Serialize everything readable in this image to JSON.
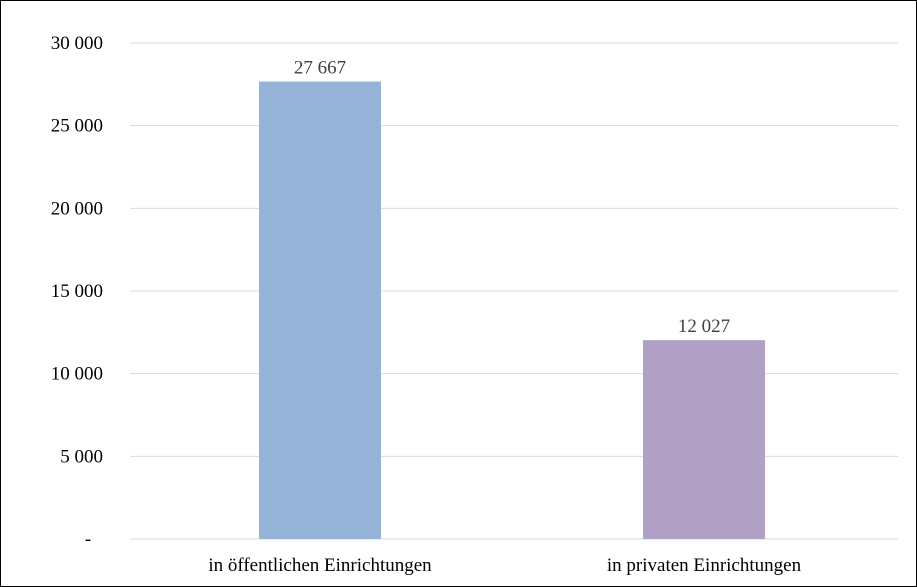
{
  "chart_data": {
    "type": "bar",
    "categories": [
      "in öffentlichen Einrichtungen",
      "in privaten Einrichtungen"
    ],
    "values": [
      27667,
      12027
    ],
    "value_labels": [
      "27 667",
      "12 027"
    ],
    "ylim": [
      0,
      30000
    ],
    "yticks": [
      0,
      5000,
      10000,
      15000,
      20000,
      25000,
      30000
    ],
    "ytick_labels": [
      "-",
      "5 000",
      "10 000",
      "15 000",
      "20 000",
      "25 000",
      "30 000"
    ],
    "bar_colors": [
      "#95b3d7",
      "#b2a1c7"
    ],
    "grid": true,
    "gridline_color": "#d9d9d9",
    "title": "",
    "xlabel": "",
    "ylabel": ""
  }
}
